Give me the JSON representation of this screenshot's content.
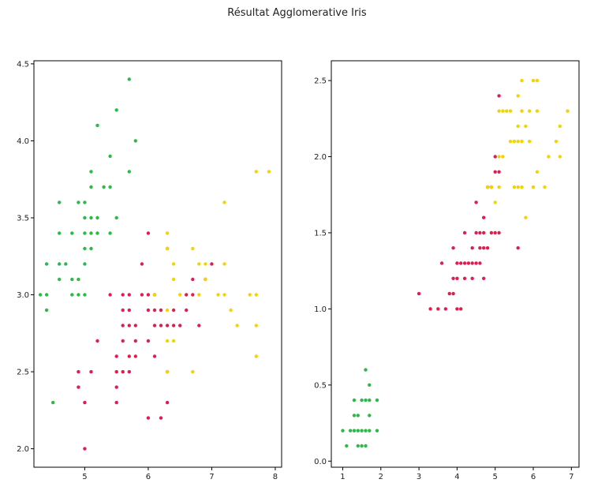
{
  "title": "Résultat Agglomerative Iris",
  "colors": {
    "cluster_0": "#2eb84a",
    "cluster_1": "#dc1f50",
    "cluster_2": "#f5d300"
  },
  "chart_data": [
    {
      "type": "scatter",
      "title": "",
      "xlabel": "",
      "ylabel": "",
      "xlim": [
        4.2,
        8.1
      ],
      "ylim": [
        1.88,
        4.52
      ],
      "xticks": [
        5,
        6,
        7,
        8
      ],
      "yticks": [
        2.0,
        2.5,
        3.0,
        3.5,
        4.0,
        4.5
      ],
      "grid": false,
      "series": [
        {
          "color": "#2eb84a",
          "points": [
            [
              4.3,
              3.0
            ],
            [
              4.4,
              2.9
            ],
            [
              4.4,
              3.0
            ],
            [
              4.4,
              3.2
            ],
            [
              4.5,
              2.3
            ],
            [
              4.6,
              3.1
            ],
            [
              4.6,
              3.2
            ],
            [
              4.6,
              3.4
            ],
            [
              4.6,
              3.6
            ],
            [
              4.7,
              3.2
            ],
            [
              4.8,
              3.0
            ],
            [
              4.8,
              3.1
            ],
            [
              4.8,
              3.4
            ],
            [
              4.9,
              3.0
            ],
            [
              4.9,
              3.1
            ],
            [
              4.9,
              3.6
            ],
            [
              5.0,
              3.0
            ],
            [
              5.0,
              3.2
            ],
            [
              5.0,
              3.3
            ],
            [
              5.0,
              3.4
            ],
            [
              5.0,
              3.5
            ],
            [
              5.0,
              3.6
            ],
            [
              5.1,
              3.3
            ],
            [
              5.1,
              3.4
            ],
            [
              5.1,
              3.5
            ],
            [
              5.1,
              3.7
            ],
            [
              5.1,
              3.8
            ],
            [
              5.2,
              3.4
            ],
            [
              5.2,
              3.5
            ],
            [
              5.2,
              4.1
            ],
            [
              5.3,
              3.7
            ],
            [
              5.4,
              3.4
            ],
            [
              5.4,
              3.7
            ],
            [
              5.4,
              3.9
            ],
            [
              5.5,
              3.5
            ],
            [
              5.5,
              4.2
            ],
            [
              5.7,
              3.8
            ],
            [
              5.7,
              4.4
            ],
            [
              5.8,
              4.0
            ]
          ]
        },
        {
          "color": "#dc1f50",
          "points": [
            [
              4.9,
              2.4
            ],
            [
              4.9,
              2.5
            ],
            [
              5.0,
              2.0
            ],
            [
              5.0,
              2.3
            ],
            [
              5.1,
              2.5
            ],
            [
              5.2,
              2.7
            ],
            [
              5.4,
              3.0
            ],
            [
              5.5,
              2.3
            ],
            [
              5.5,
              2.4
            ],
            [
              5.5,
              2.5
            ],
            [
              5.5,
              2.6
            ],
            [
              5.6,
              2.5
            ],
            [
              5.6,
              2.7
            ],
            [
              5.6,
              2.8
            ],
            [
              5.6,
              2.9
            ],
            [
              5.6,
              3.0
            ],
            [
              5.7,
              2.5
            ],
            [
              5.7,
              2.6
            ],
            [
              5.7,
              2.8
            ],
            [
              5.7,
              2.9
            ],
            [
              5.7,
              3.0
            ],
            [
              5.8,
              2.6
            ],
            [
              5.8,
              2.7
            ],
            [
              5.8,
              2.8
            ],
            [
              5.9,
              3.0
            ],
            [
              5.9,
              3.2
            ],
            [
              6.0,
              2.2
            ],
            [
              6.0,
              2.7
            ],
            [
              6.0,
              2.9
            ],
            [
              6.0,
              3.0
            ],
            [
              6.0,
              3.4
            ],
            [
              6.1,
              2.6
            ],
            [
              6.1,
              2.8
            ],
            [
              6.1,
              2.9
            ],
            [
              6.1,
              3.0
            ],
            [
              6.2,
              2.2
            ],
            [
              6.2,
              2.8
            ],
            [
              6.2,
              2.9
            ],
            [
              6.3,
              2.3
            ],
            [
              6.3,
              2.5
            ],
            [
              6.3,
              2.8
            ],
            [
              6.3,
              3.3
            ],
            [
              6.4,
              2.8
            ],
            [
              6.4,
              2.9
            ],
            [
              6.5,
              2.8
            ],
            [
              6.6,
              2.9
            ],
            [
              6.6,
              3.0
            ],
            [
              6.7,
              3.0
            ],
            [
              6.7,
              3.1
            ],
            [
              6.8,
              2.8
            ],
            [
              6.9,
              3.1
            ],
            [
              7.0,
              3.2
            ]
          ]
        },
        {
          "color": "#f5d300",
          "points": [
            [
              6.1,
              3.0
            ],
            [
              6.3,
              2.5
            ],
            [
              6.3,
              2.7
            ],
            [
              6.3,
              2.9
            ],
            [
              6.3,
              3.3
            ],
            [
              6.3,
              3.4
            ],
            [
              6.4,
              2.7
            ],
            [
              6.4,
              3.1
            ],
            [
              6.4,
              3.2
            ],
            [
              6.5,
              3.0
            ],
            [
              6.7,
              2.5
            ],
            [
              6.7,
              3.3
            ],
            [
              6.8,
              3.0
            ],
            [
              6.8,
              3.2
            ],
            [
              6.9,
              3.1
            ],
            [
              6.9,
              3.2
            ],
            [
              7.1,
              3.0
            ],
            [
              7.2,
              3.0
            ],
            [
              7.2,
              3.2
            ],
            [
              7.2,
              3.6
            ],
            [
              7.3,
              2.9
            ],
            [
              7.4,
              2.8
            ],
            [
              7.6,
              3.0
            ],
            [
              7.7,
              2.6
            ],
            [
              7.7,
              2.8
            ],
            [
              7.7,
              3.0
            ],
            [
              7.7,
              3.8
            ],
            [
              7.9,
              3.8
            ]
          ]
        }
      ]
    },
    {
      "type": "scatter",
      "title": "",
      "xlabel": "",
      "ylabel": "",
      "xlim": [
        0.7,
        7.2
      ],
      "ylim": [
        -0.04,
        2.63
      ],
      "xticks": [
        1,
        2,
        3,
        4,
        5,
        6,
        7
      ],
      "yticks": [
        0.0,
        0.5,
        1.0,
        1.5,
        2.0,
        2.5
      ],
      "grid": false,
      "series": [
        {
          "color": "#2eb84a",
          "points": [
            [
              1.0,
              0.2
            ],
            [
              1.1,
              0.1
            ],
            [
              1.2,
              0.2
            ],
            [
              1.3,
              0.2
            ],
            [
              1.3,
              0.3
            ],
            [
              1.3,
              0.4
            ],
            [
              1.4,
              0.1
            ],
            [
              1.4,
              0.2
            ],
            [
              1.4,
              0.3
            ],
            [
              1.5,
              0.1
            ],
            [
              1.5,
              0.2
            ],
            [
              1.5,
              0.4
            ],
            [
              1.6,
              0.1
            ],
            [
              1.6,
              0.2
            ],
            [
              1.6,
              0.4
            ],
            [
              1.6,
              0.6
            ],
            [
              1.7,
              0.2
            ],
            [
              1.7,
              0.3
            ],
            [
              1.7,
              0.4
            ],
            [
              1.7,
              0.5
            ],
            [
              1.9,
              0.2
            ],
            [
              1.9,
              0.4
            ]
          ]
        },
        {
          "color": "#dc1f50",
          "points": [
            [
              3.0,
              1.1
            ],
            [
              3.3,
              1.0
            ],
            [
              3.5,
              1.0
            ],
            [
              3.6,
              1.3
            ],
            [
              3.7,
              1.0
            ],
            [
              3.8,
              1.1
            ],
            [
              3.9,
              1.1
            ],
            [
              3.9,
              1.2
            ],
            [
              3.9,
              1.4
            ],
            [
              4.0,
              1.0
            ],
            [
              4.0,
              1.2
            ],
            [
              4.0,
              1.3
            ],
            [
              4.1,
              1.0
            ],
            [
              4.1,
              1.3
            ],
            [
              4.2,
              1.2
            ],
            [
              4.2,
              1.3
            ],
            [
              4.2,
              1.5
            ],
            [
              4.3,
              1.3
            ],
            [
              4.4,
              1.2
            ],
            [
              4.4,
              1.3
            ],
            [
              4.4,
              1.4
            ],
            [
              4.5,
              1.3
            ],
            [
              4.5,
              1.5
            ],
            [
              4.5,
              1.7
            ],
            [
              4.6,
              1.3
            ],
            [
              4.6,
              1.4
            ],
            [
              4.6,
              1.5
            ],
            [
              4.7,
              1.2
            ],
            [
              4.7,
              1.4
            ],
            [
              4.7,
              1.5
            ],
            [
              4.7,
              1.6
            ],
            [
              4.8,
              1.4
            ],
            [
              4.8,
              1.8
            ],
            [
              4.9,
              1.5
            ],
            [
              4.9,
              1.8
            ],
            [
              5.0,
              1.5
            ],
            [
              5.0,
              1.9
            ],
            [
              5.0,
              2.0
            ],
            [
              5.1,
              1.5
            ],
            [
              5.1,
              1.9
            ],
            [
              5.1,
              2.4
            ],
            [
              5.6,
              1.4
            ]
          ]
        },
        {
          "color": "#f5d300",
          "points": [
            [
              4.8,
              1.8
            ],
            [
              4.9,
              1.8
            ],
            [
              5.0,
              1.7
            ],
            [
              5.1,
              1.8
            ],
            [
              5.1,
              2.0
            ],
            [
              5.1,
              2.3
            ],
            [
              5.2,
              2.0
            ],
            [
              5.2,
              2.3
            ],
            [
              5.3,
              2.3
            ],
            [
              5.4,
              2.1
            ],
            [
              5.4,
              2.3
            ],
            [
              5.5,
              1.8
            ],
            [
              5.5,
              2.1
            ],
            [
              5.6,
              1.8
            ],
            [
              5.6,
              2.1
            ],
            [
              5.6,
              2.2
            ],
            [
              5.6,
              2.4
            ],
            [
              5.7,
              1.8
            ],
            [
              5.7,
              2.1
            ],
            [
              5.7,
              2.3
            ],
            [
              5.7,
              2.5
            ],
            [
              5.8,
              1.6
            ],
            [
              5.8,
              2.2
            ],
            [
              5.9,
              2.1
            ],
            [
              5.9,
              2.3
            ],
            [
              6.0,
              1.8
            ],
            [
              6.0,
              2.5
            ],
            [
              6.1,
              1.9
            ],
            [
              6.1,
              2.3
            ],
            [
              6.1,
              2.5
            ],
            [
              6.3,
              1.8
            ],
            [
              6.4,
              2.0
            ],
            [
              6.6,
              2.1
            ],
            [
              6.7,
              2.0
            ],
            [
              6.7,
              2.2
            ],
            [
              6.9,
              2.3
            ]
          ]
        }
      ]
    }
  ]
}
